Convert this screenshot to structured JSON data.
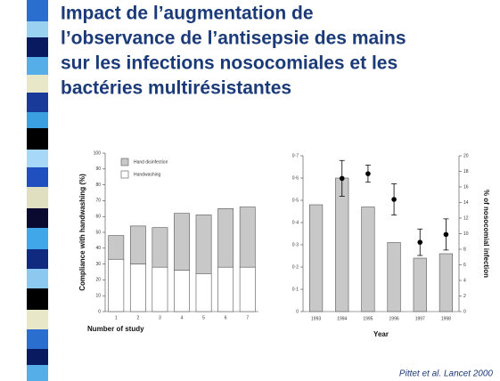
{
  "slide_title": [
    "Impact de l’augmentation de",
    "l’observance de l’antisepsie des mains",
    "sur les infections nosocomiales et les",
    "bactéries multirésistantes"
  ],
  "citation": "Pittet et al. Lancet 2000",
  "chart_data": [
    {
      "type": "stacked_bar",
      "categories": [
        "1",
        "2",
        "3",
        "4",
        "5",
        "6",
        "7"
      ],
      "series": [
        {
          "name": "Handwashing",
          "color": "#ffffff",
          "values": [
            33,
            30,
            28,
            26,
            24,
            28,
            28
          ]
        },
        {
          "name": "Hand disinfection",
          "color": "#c8c8c8",
          "values": [
            15,
            24,
            25,
            36,
            37,
            37,
            38
          ]
        }
      ],
      "ylim": [
        0,
        100
      ],
      "yticks": [
        0,
        10,
        20,
        30,
        40,
        50,
        60,
        70,
        80,
        90,
        100
      ],
      "ylabel": "Compliance with handwashing (%)",
      "xlabel": "Number of study"
    },
    {
      "type": "bar",
      "categories": [
        "1993",
        "1994",
        "1995",
        "1996",
        "1997",
        "1998"
      ],
      "series": [
        {
          "kind": "bar",
          "color": "#c8c8c8",
          "values": [
            0.48,
            0.6,
            0.47,
            0.31,
            0.24,
            0.26
          ]
        },
        {
          "kind": "point",
          "axis": "y2",
          "color": "#000000",
          "values": [
            null,
            17.1,
            17.7,
            14.4,
            8.9,
            9.9
          ],
          "errors": [
            null,
            2.3,
            1.1,
            2,
            1.7,
            2
          ]
        }
      ],
      "ylim": [
        0,
        0.7
      ],
      "yticks": [
        0,
        {
          "value": 0.1,
          "label": "0·1"
        },
        {
          "value": 0.2,
          "label": "0·2"
        },
        {
          "value": 0.3,
          "label": "0·3"
        },
        {
          "value": 0.4,
          "label": "0·4"
        },
        {
          "value": 0.5,
          "label": "0·5"
        },
        {
          "value": 0.6,
          "label": "0·6"
        },
        {
          "value": 0.7,
          "label": "0·7"
        }
      ],
      "y2lim": [
        0,
        20
      ],
      "y2ticks": [
        0,
        2,
        4,
        6,
        8,
        10,
        12,
        14,
        16,
        18,
        20
      ],
      "y2label": "% of nosocomial infection",
      "xlabel": "Year"
    }
  ]
}
